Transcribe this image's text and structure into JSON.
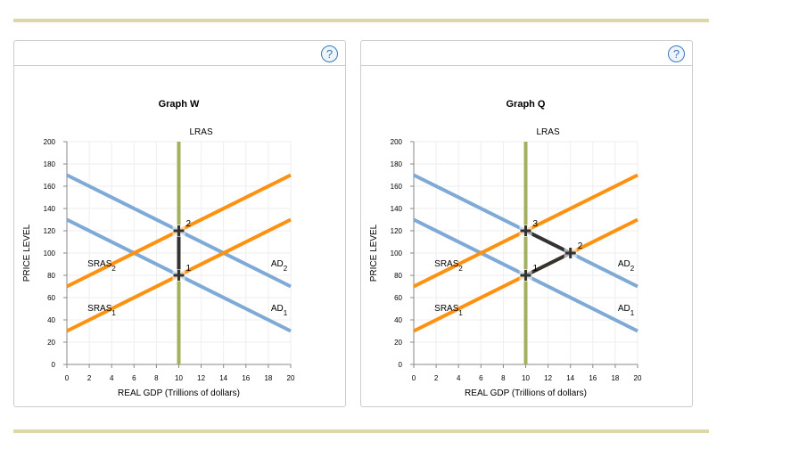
{
  "help_label": "?",
  "chart_data": [
    {
      "type": "line",
      "title": "Graph W",
      "xlabel": "REAL GDP (Trillions of dollars)",
      "ylabel": "PRICE LEVEL",
      "xlim": [
        0,
        20
      ],
      "ylim": [
        0,
        200
      ],
      "xticks": [
        0,
        2,
        4,
        6,
        8,
        10,
        12,
        14,
        16,
        18,
        20
      ],
      "yticks": [
        0,
        20,
        40,
        60,
        80,
        100,
        120,
        140,
        160,
        180,
        200
      ],
      "grid": true,
      "colors": {
        "AD": "#7fa9d6",
        "SRAS": "#ff9110",
        "LRAS": "#a4b15c",
        "path": "#333333"
      },
      "series": [
        {
          "name": "AD",
          "sub": "2",
          "kind": "AD",
          "points": [
            [
              0,
              170
            ],
            [
              20,
              70
            ]
          ]
        },
        {
          "name": "AD",
          "sub": "1",
          "kind": "AD",
          "points": [
            [
              0,
              130
            ],
            [
              20,
              30
            ]
          ]
        },
        {
          "name": "SRAS",
          "sub": "2",
          "kind": "SRAS",
          "points": [
            [
              0,
              70
            ],
            [
              20,
              170
            ]
          ]
        },
        {
          "name": "SRAS",
          "sub": "1",
          "kind": "SRAS",
          "points": [
            [
              0,
              30
            ],
            [
              20,
              130
            ]
          ]
        },
        {
          "name": "LRAS",
          "sub": "",
          "kind": "LRAS",
          "points": [
            [
              10,
              0
            ],
            [
              10,
              200
            ]
          ]
        }
      ],
      "equilibria": [
        {
          "label": "1",
          "x": 10,
          "y": 80
        },
        {
          "label": "2",
          "x": 10,
          "y": 120
        }
      ],
      "path": [
        [
          10,
          120
        ],
        [
          10,
          80
        ]
      ]
    },
    {
      "type": "line",
      "title": "Graph Q",
      "xlabel": "REAL GDP (Trillions of dollars)",
      "ylabel": "PRICE LEVEL",
      "xlim": [
        0,
        20
      ],
      "ylim": [
        0,
        200
      ],
      "xticks": [
        0,
        2,
        4,
        6,
        8,
        10,
        12,
        14,
        16,
        18,
        20
      ],
      "yticks": [
        0,
        20,
        40,
        60,
        80,
        100,
        120,
        140,
        160,
        180,
        200
      ],
      "grid": true,
      "colors": {
        "AD": "#7fa9d6",
        "SRAS": "#ff9110",
        "LRAS": "#a4b15c",
        "path": "#333333"
      },
      "series": [
        {
          "name": "AD",
          "sub": "2",
          "kind": "AD",
          "points": [
            [
              0,
              170
            ],
            [
              20,
              70
            ]
          ]
        },
        {
          "name": "AD",
          "sub": "1",
          "kind": "AD",
          "points": [
            [
              0,
              130
            ],
            [
              20,
              30
            ]
          ]
        },
        {
          "name": "SRAS",
          "sub": "2",
          "kind": "SRAS",
          "points": [
            [
              0,
              70
            ],
            [
              20,
              170
            ]
          ]
        },
        {
          "name": "SRAS",
          "sub": "1",
          "kind": "SRAS",
          "points": [
            [
              0,
              30
            ],
            [
              20,
              130
            ]
          ]
        },
        {
          "name": "LRAS",
          "sub": "",
          "kind": "LRAS",
          "points": [
            [
              10,
              0
            ],
            [
              10,
              200
            ]
          ]
        }
      ],
      "equilibria": [
        {
          "label": "1",
          "x": 10,
          "y": 80
        },
        {
          "label": "2",
          "x": 14,
          "y": 100
        },
        {
          "label": "3",
          "x": 10,
          "y": 120
        }
      ],
      "path": [
        [
          10,
          80
        ],
        [
          14,
          100
        ],
        [
          10,
          120
        ]
      ]
    }
  ]
}
